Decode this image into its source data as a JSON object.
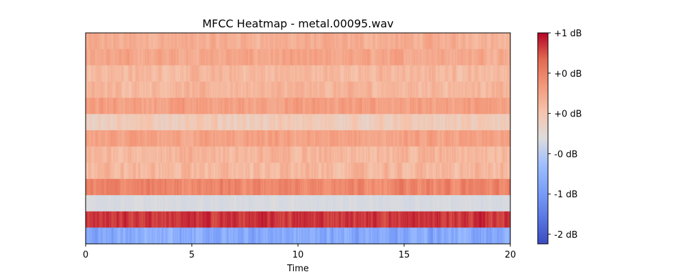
{
  "chart_data": {
    "type": "heatmap",
    "title": "MFCC Heatmap - metal.00095.wav",
    "xlabel": "Time",
    "ylabel": "",
    "xlim": [
      0,
      20
    ],
    "x_ticks": [
      "0",
      "5",
      "10",
      "15",
      "20"
    ],
    "colormap": "coolwarm",
    "colorbar_ticks": [
      "+1 dB",
      "+0 dB",
      "+0 dB",
      "-0 dB",
      "-1 dB",
      "-2 dB"
    ],
    "colorbar_range": [
      -2.2,
      1.2
    ],
    "n_frames": 400,
    "rows": [
      {
        "base": 0.45,
        "var": 0.1
      },
      {
        "base": 0.5,
        "var": 0.1
      },
      {
        "base": 0.38,
        "var": 0.1
      },
      {
        "base": 0.4,
        "var": 0.1
      },
      {
        "base": 0.55,
        "var": 0.1
      },
      {
        "base": 0.22,
        "var": 0.12
      },
      {
        "base": 0.52,
        "var": 0.1
      },
      {
        "base": 0.4,
        "var": 0.12
      },
      {
        "base": 0.38,
        "var": 0.12
      },
      {
        "base": 0.72,
        "var": 0.12
      },
      {
        "base": -0.05,
        "var": 0.05
      },
      {
        "base": 1.05,
        "var": 0.1
      },
      {
        "base": -0.9,
        "var": 0.35
      }
    ]
  }
}
